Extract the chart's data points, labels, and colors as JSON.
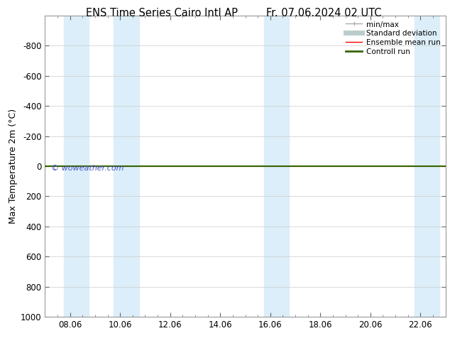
{
  "title_left": "ENS Time Series Cairo Intl AP",
  "title_right": "Fr. 07.06.2024 02 UTC",
  "ylabel": "Max Temperature 2m (°C)",
  "watermark": "© woweather.com",
  "watermark_color": "#4455cc",
  "ylim_bottom": 1000,
  "ylim_top": -1000,
  "yticks": [
    -800,
    -600,
    -400,
    -200,
    0,
    200,
    400,
    600,
    800,
    1000
  ],
  "x_min": 0,
  "x_max": 16,
  "xtick_positions": [
    1,
    3,
    5,
    7,
    9,
    11,
    13,
    15
  ],
  "xtick_labels": [
    "08.06",
    "10.06",
    "12.06",
    "14.06",
    "16.06",
    "18.06",
    "20.06",
    "22.06"
  ],
  "shaded_bands": [
    [
      0.75,
      1.75
    ],
    [
      2.75,
      3.75
    ],
    [
      8.75,
      9.75
    ],
    [
      14.75,
      15.75
    ]
  ],
  "shaded_color": "#dceef9",
  "green_line_y": 0,
  "green_line_color": "#336600",
  "red_line_y": 0,
  "red_line_color": "#ff0000",
  "legend_items": [
    {
      "label": "min/max",
      "color": "#aaaaaa",
      "lw": 1
    },
    {
      "label": "Standard deviation",
      "color": "#bbcccc",
      "lw": 5
    },
    {
      "label": "Ensemble mean run",
      "color": "#ff0000",
      "lw": 1
    },
    {
      "label": "Controll run",
      "color": "#336600",
      "lw": 2
    }
  ],
  "background_color": "#ffffff",
  "grid_color": "#cccccc",
  "spine_color": "#999999",
  "title_fontsize": 10.5,
  "ylabel_fontsize": 9,
  "tick_fontsize": 8.5,
  "legend_fontsize": 7.5,
  "watermark_fontsize": 8
}
